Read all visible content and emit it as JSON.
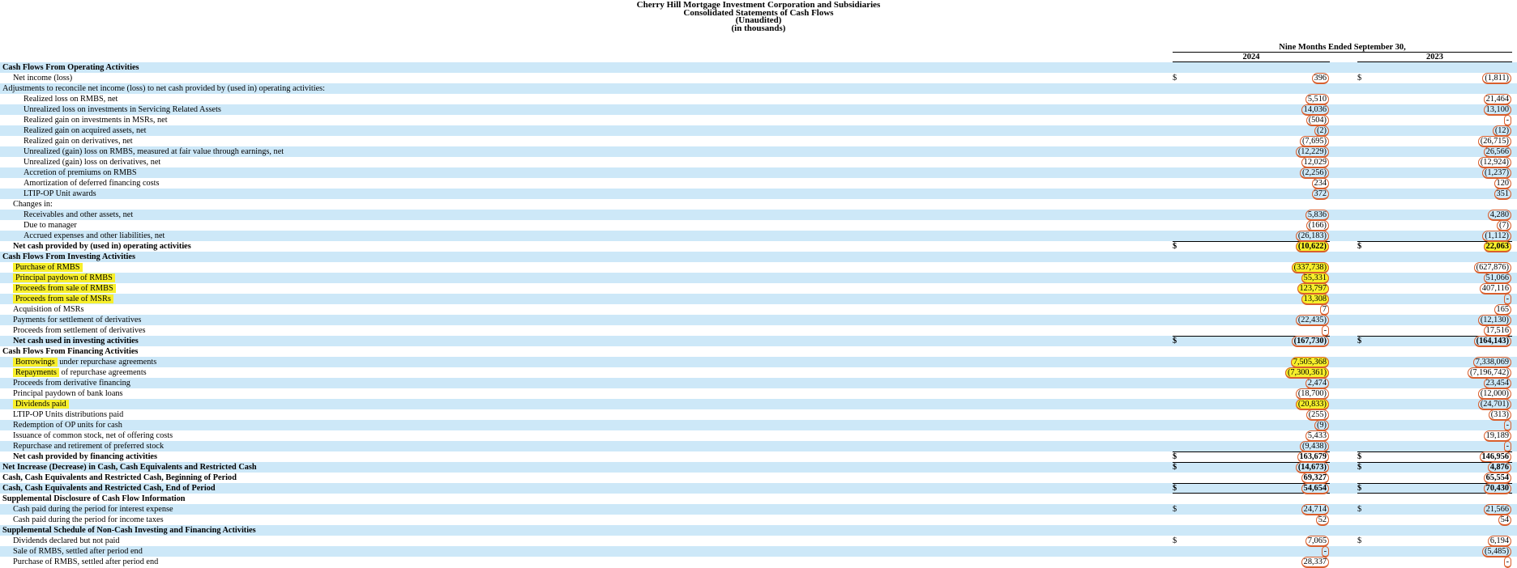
{
  "document": {
    "title_lines": [
      "Cherry Hill Mortgage Investment Corporation and Subsidiaries",
      "Consolidated Statements of Cash Flows",
      "(Unaudited)",
      "(in thousands)"
    ],
    "period_header": "Nine Months Ended September 30,",
    "columns": [
      "2024",
      "2023"
    ],
    "currency_symbol": "$"
  },
  "colors": {
    "row_stripe": "#cde8f8",
    "annotation_highlight": "#f7ef2b",
    "fact_outline": "#d95f2d"
  },
  "rows": [
    {
      "label": "Cash Flows From Operating Activities",
      "indent": 0,
      "bold": true
    },
    {
      "label": "Net income (loss)",
      "indent": 1,
      "d1": true,
      "d2": true,
      "v1": "396",
      "v2": "(1,811)"
    },
    {
      "label": "Adjustments to reconcile net income (loss) to net cash provided by (used in) operating activities:",
      "indent": 0
    },
    {
      "label": "Realized loss on RMBS, net",
      "indent": 2,
      "v1": "5,510",
      "v2": "21,464"
    },
    {
      "label": "Unrealized loss on investments in Servicing Related Assets",
      "indent": 2,
      "v1": "14,036",
      "v2": "13,100"
    },
    {
      "label": "Realized gain on investments in MSRs, net",
      "indent": 2,
      "v1": "(504)",
      "v2": "-"
    },
    {
      "label": "Realized gain on acquired assets, net",
      "indent": 2,
      "v1": "(2)",
      "v2": "(12)"
    },
    {
      "label": "Realized gain on derivatives, net",
      "indent": 2,
      "v1": "(7,695)",
      "v2": "(26,715)"
    },
    {
      "label": "Unrealized (gain) loss on RMBS, measured at fair value through earnings, net",
      "indent": 2,
      "v1": "(12,229)",
      "v2": "26,566"
    },
    {
      "label": "Unrealized (gain) loss on derivatives, net",
      "indent": 2,
      "v1": "12,029",
      "v2": "(12,924)"
    },
    {
      "label": "Accretion of premiums on RMBS",
      "indent": 2,
      "v1": "(2,256)",
      "v2": "(1,237)"
    },
    {
      "label": "Amortization of deferred financing costs",
      "indent": 2,
      "v1": "234",
      "v2": "120"
    },
    {
      "label": "LTIP-OP Unit awards",
      "indent": 2,
      "v1": "372",
      "v2": "351"
    },
    {
      "label": "Changes in:",
      "indent": 1
    },
    {
      "label": "Receivables and other assets, net",
      "indent": 2,
      "v1": "5,836",
      "v2": "4,280"
    },
    {
      "label": "Due to manager",
      "indent": 2,
      "v1": "(166)",
      "v2": "(7)"
    },
    {
      "label": "Accrued expenses and other liabilities, net",
      "indent": 2,
      "v1": "(26,183)",
      "v2": "(1,112)"
    },
    {
      "label": "Net cash provided by (used in) operating activities",
      "indent": 1,
      "bold": true,
      "d1": true,
      "d2": true,
      "v1": "(10,622)",
      "v2": "22,063",
      "hl1": true,
      "hl2": true,
      "line_top": true
    },
    {
      "label": "Cash Flows From Investing Activities",
      "indent": 0,
      "bold": true
    },
    {
      "label": "Purchase of RMBS",
      "indent": 1,
      "hl": "full",
      "v1": "(337,738)",
      "hl1": true,
      "v2": "(627,876)"
    },
    {
      "label": "Principal paydown of RMBS",
      "indent": 1,
      "hl": "full",
      "v1": "55,331",
      "hl1": true,
      "v2": "51,066"
    },
    {
      "label": "Proceeds from sale of RMBS",
      "indent": 1,
      "hl": "full",
      "v1": "123,797",
      "hl1": true,
      "v2": "407,116"
    },
    {
      "label": "Proceeds from sale of MSRs",
      "indent": 1,
      "hl": "full",
      "v1": "13,308",
      "hl1": true,
      "v2": "-"
    },
    {
      "label": "Acquisition of MSRs",
      "indent": 1,
      "v1": "7",
      "v2": "165"
    },
    {
      "label": "Payments for settlement of derivatives",
      "indent": 1,
      "v1": "(22,435)",
      "v2": "(12,130)"
    },
    {
      "label": "Proceeds from settlement of derivatives",
      "indent": 1,
      "v1": "-",
      "v2": "17,516"
    },
    {
      "label": "Net cash used in investing activities",
      "indent": 1,
      "bold": true,
      "d1": true,
      "d2": true,
      "v1": "(167,730)",
      "v2": "(164,143)",
      "line_top": true
    },
    {
      "label": "Cash Flows From Financing Activities",
      "indent": 0,
      "bold": true
    },
    {
      "label": "Borrowings under repurchase agreements",
      "indent": 1,
      "hl": "prefix",
      "hl_prefix": "Borrowings",
      "v1": "7,505,368",
      "hl1": true,
      "v2": "7,338,069"
    },
    {
      "label": "Repayments of repurchase agreements",
      "indent": 1,
      "hl": "prefix",
      "hl_prefix": "Repayments",
      "v1": "(7,300,361)",
      "hl1": true,
      "v2": "(7,196,742)"
    },
    {
      "label": "Proceeds from derivative financing",
      "indent": 1,
      "v1": "2,474",
      "v2": "23,454"
    },
    {
      "label": "Principal paydown of bank loans",
      "indent": 1,
      "v1": "(18,700)",
      "v2": "(12,000)"
    },
    {
      "label": "Dividends paid",
      "indent": 1,
      "hl": "full",
      "v1": "(20,833)",
      "hl1": true,
      "v2": "(24,701)"
    },
    {
      "label": "LTIP-OP Units distributions paid",
      "indent": 1,
      "v1": "(255)",
      "v2": "(313)"
    },
    {
      "label": "Redemption of OP units for cash",
      "indent": 1,
      "v1": "(9)",
      "v2": "-"
    },
    {
      "label": "Issuance of common stock, net of offering costs",
      "indent": 1,
      "v1": "5,433",
      "v2": "19,189"
    },
    {
      "label": "Repurchase and retirement of preferred stock",
      "indent": 1,
      "v1": "(9,438)",
      "v2": "-"
    },
    {
      "label": "Net cash provided by financing activities",
      "indent": 1,
      "bold": true,
      "d1": true,
      "d2": true,
      "v1": "163,679",
      "v2": "146,956",
      "line_top": true
    },
    {
      "label": "Net Increase (Decrease) in Cash, Cash Equivalents and Restricted Cash",
      "indent": 0,
      "bold": true,
      "d1": true,
      "d2": true,
      "v1": "(14,673)",
      "v2": "4,876",
      "line_top": true
    },
    {
      "label": "Cash, Cash Equivalents and Restricted Cash, Beginning of Period",
      "indent": 0,
      "bold": true,
      "v1": "69,327",
      "v2": "65,554"
    },
    {
      "label": "Cash, Cash Equivalents and Restricted Cash, End of Period",
      "indent": 0,
      "bold": true,
      "d1": true,
      "d2": true,
      "v1": "54,654",
      "v2": "70,430",
      "line_top": true,
      "line_bottom": true
    },
    {
      "label": "Supplemental Disclosure of Cash Flow Information",
      "indent": 0,
      "bold": true
    },
    {
      "label": "Cash paid during the period for interest expense",
      "indent": 1,
      "d1": true,
      "d2": true,
      "v1": "24,714",
      "v2": "21,566"
    },
    {
      "label": "Cash paid during the period for income taxes",
      "indent": 1,
      "v1": "52",
      "v2": "54"
    },
    {
      "label": "Supplemental Schedule of Non-Cash Investing and Financing Activities",
      "indent": 0,
      "bold": true
    },
    {
      "label": "Dividends declared but not paid",
      "indent": 1,
      "d1": true,
      "d2": true,
      "v1": "7,065",
      "v2": "6,194"
    },
    {
      "label": "Sale of RMBS, settled after period end",
      "indent": 1,
      "v1": "-",
      "v2": "(5,485)"
    },
    {
      "label": "Purchase of RMBS, settled after period end",
      "indent": 1,
      "v1": "28,337",
      "v2": "-"
    }
  ]
}
